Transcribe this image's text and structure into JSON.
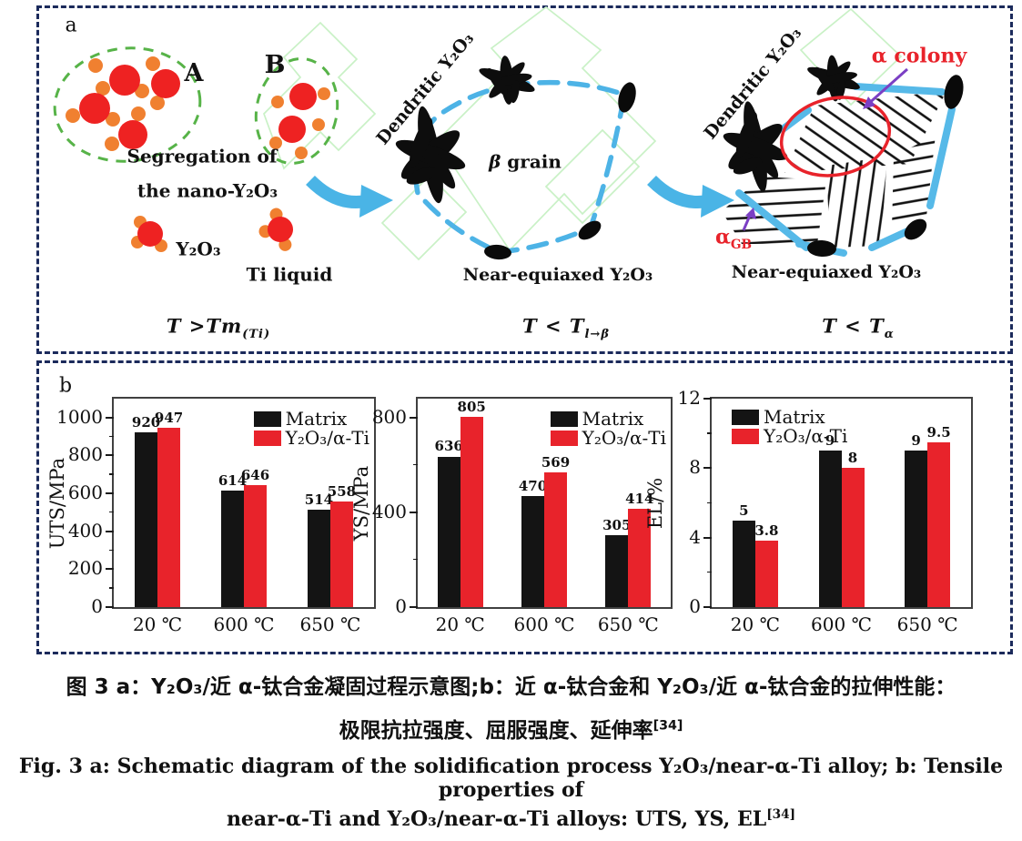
{
  "figure": {
    "panel_a_label": "a",
    "panel_b_label": "b"
  },
  "panel_a": {
    "cluster_a_label": "A",
    "cluster_b_label": "B",
    "segregation_line1": "Segregation of",
    "segregation_line2": "the nano-Y₂O₃",
    "y2o3_label": "Y₂O₃",
    "ti_liquid_label": "Ti liquid",
    "stage1_formula": {
      "main": "T >Tm",
      "sub": "(Ti)"
    },
    "middle": {
      "dendritic_label": "Dendritic Y₂O₃",
      "beta_grain": {
        "symbol": "β",
        "text": " grain"
      },
      "near_equiaxed_label": "Near-equiaxed Y₂O₃",
      "stage2_formula": {
        "main": "T < T",
        "sub": "l→β"
      }
    },
    "right": {
      "dendritic_label": "Dendritic Y₂O₃",
      "alpha_colony_label": "α colony",
      "alpha_gb": {
        "main": "α",
        "sub": "GB"
      },
      "near_equiaxed_label": "Near-equiaxed Y₂O₃",
      "stage3_formula": {
        "main": "T < T",
        "sub": "α"
      }
    }
  },
  "chart_data": [
    {
      "type": "bar",
      "ylabel": "UTS/MPa",
      "categories": [
        "20 ℃",
        "600 ℃",
        "650 ℃"
      ],
      "series": [
        {
          "name": "Matrix",
          "color": "#141414",
          "values": [
            920,
            614,
            514
          ]
        },
        {
          "name": "Y₂O₃/α-Ti",
          "color": "#e8232b",
          "values": [
            947,
            646,
            558
          ]
        }
      ],
      "ylim": [
        0,
        1100
      ],
      "yticks": [
        0,
        200,
        400,
        600,
        800,
        1000
      ],
      "minor_tick_step": 100,
      "legend_position": "top-right",
      "grid": false
    },
    {
      "type": "bar",
      "ylabel": "YS/MPa",
      "categories": [
        "20 ℃",
        "600 ℃",
        "650 ℃"
      ],
      "series": [
        {
          "name": "Matrix",
          "color": "#141414",
          "values": [
            636,
            470,
            305
          ]
        },
        {
          "name": "Y₂O₃/α-Ti",
          "color": "#e8232b",
          "values": [
            805,
            569,
            414
          ]
        }
      ],
      "ylim": [
        0,
        880
      ],
      "yticks": [
        0,
        400,
        800
      ],
      "minor_tick_step": 200,
      "legend_position": "top-right",
      "grid": false
    },
    {
      "type": "bar",
      "ylabel": "EL/%",
      "categories": [
        "20 ℃",
        "600 ℃",
        "650 ℃"
      ],
      "series": [
        {
          "name": "Matrix",
          "color": "#141414",
          "values": [
            5,
            9,
            9
          ]
        },
        {
          "name": "Y₂O₃/α-Ti",
          "color": "#e8232b",
          "values": [
            3.8,
            8,
            9.5
          ]
        }
      ],
      "ylim": [
        0,
        12
      ],
      "yticks": [
        0,
        4,
        8,
        12
      ],
      "minor_tick_step": 2,
      "legend_position": "top-left",
      "grid": false
    }
  ],
  "captions": {
    "cn_line1": "图 3  a：Y₂O₃/近 α-钛合金凝固过程示意图;b：近 α-钛合金和 Y₂O₃/近 α-钛合金的拉伸性能：",
    "cn_line2_main": "极限抗拉强度、屈服强度、延伸率",
    "cn_line2_sup": "[34]",
    "en_line1": "Fig. 3  a: Schematic diagram of the solidification process Y₂O₃/near-α-Ti alloy; b: Tensile properties of",
    "en_line2_main": "near-α-Ti and Y₂O₃/near-α-Ti alloys: UTS, YS, EL",
    "en_line2_sup": "[34]"
  },
  "colors": {
    "navy_border": "#1b2a5b",
    "matrix_black": "#141414",
    "composite_red": "#e8232b",
    "blue_arrow": "#4ab4e6",
    "blue_dash_boundary": "#4db3e6",
    "blue_solid_gb": "#56b9e8",
    "green_dashed_cluster": "#57b348",
    "green_background_crystal": "#c9f1c6",
    "orange_particle": "#f08030",
    "red_particle": "#ee2222",
    "purple_arrow": "#7b3fc4",
    "annotation_red": "#e8232b"
  }
}
